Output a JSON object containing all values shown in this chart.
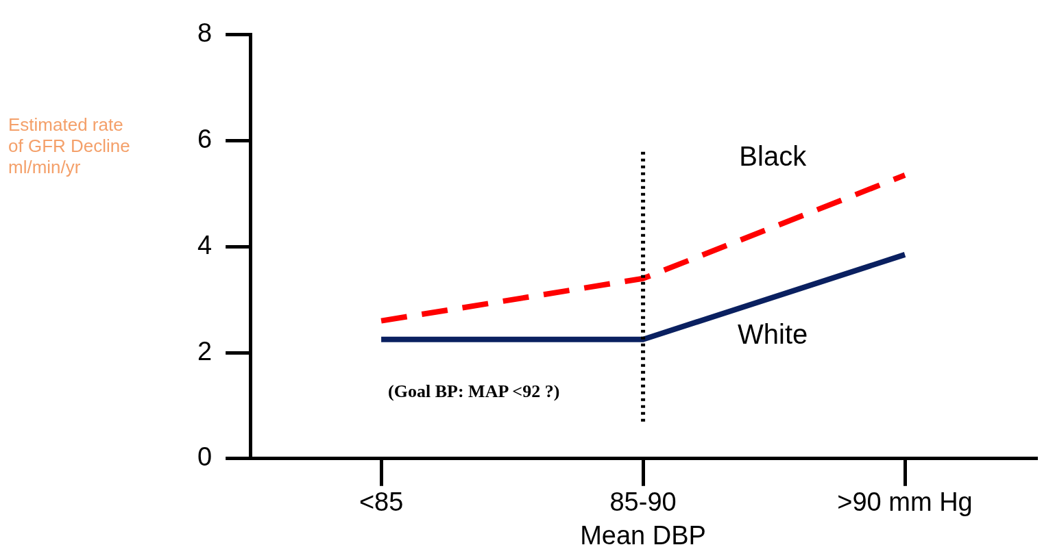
{
  "chart_data": {
    "type": "line",
    "xlabel": "Mean DBP",
    "ylabel": "Estimated rate\nof GFR Decline\nml/min/yr",
    "categories": [
      "<85",
      "85-90",
      ">90 mm Hg"
    ],
    "ylim": [
      0,
      8
    ],
    "yticks": [
      0,
      2,
      4,
      6,
      8
    ],
    "series": [
      {
        "name": "Black",
        "color": "#ff0000",
        "line_style": "dashed",
        "values": [
          2.6,
          3.4,
          5.35
        ]
      },
      {
        "name": "White",
        "color": "#0a2060",
        "line_style": "solid",
        "values": [
          2.25,
          2.25,
          3.85
        ]
      }
    ],
    "ref_lines": [
      {
        "axis": "x",
        "value": "85-90",
        "color": "#000000",
        "line_style": "dotted"
      }
    ],
    "annotations": [
      "(Goal BP: MAP <92 ?)"
    ],
    "grid": false,
    "legend": false,
    "marker": "none"
  }
}
